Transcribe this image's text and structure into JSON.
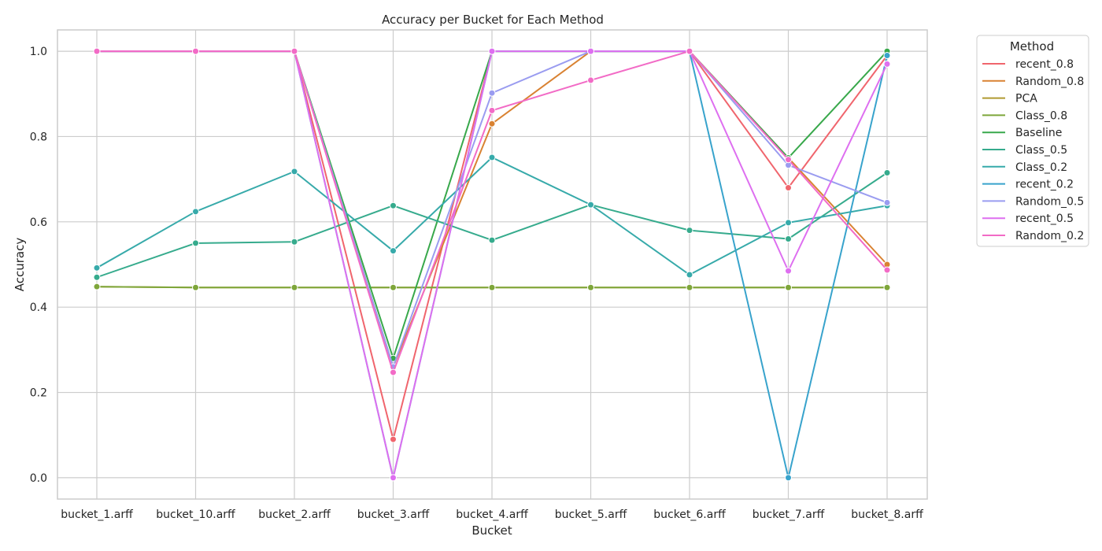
{
  "chart_data": {
    "type": "line",
    "title": "Accuracy per Bucket for Each Method",
    "xlabel": "Bucket",
    "ylabel": "Accuracy",
    "categories": [
      "bucket_1.arff",
      "bucket_10.arff",
      "bucket_2.arff",
      "bucket_3.arff",
      "bucket_4.arff",
      "bucket_5.arff",
      "bucket_6.arff",
      "bucket_7.arff",
      "bucket_8.arff"
    ],
    "ylim": [
      -0.05,
      1.05
    ],
    "yticks": [
      "0.0",
      "0.2",
      "0.4",
      "0.6",
      "0.8",
      "1.0"
    ],
    "grid": true,
    "legend_title": "Method",
    "legend_position": "outside-right",
    "series": [
      {
        "name": "recent_0.8",
        "color": "#f0656d",
        "values": [
          1.0,
          1.0,
          1.0,
          0.09,
          1.0,
          1.0,
          1.0,
          0.68,
          0.99
        ]
      },
      {
        "name": "Random_0.8",
        "color": "#d98232",
        "values": [
          1.0,
          1.0,
          1.0,
          0.26,
          0.83,
          1.0,
          1.0,
          0.75,
          0.5
        ]
      },
      {
        "name": "PCA",
        "color": "#b09a30",
        "values": [
          0.448,
          0.446,
          0.446,
          0.446,
          0.446,
          0.446,
          0.446,
          0.446,
          0.446
        ]
      },
      {
        "name": "Class_0.8",
        "color": "#7ea63a",
        "values": [
          0.448,
          0.446,
          0.446,
          0.446,
          0.446,
          0.446,
          0.446,
          0.446,
          0.446
        ]
      },
      {
        "name": "Baseline",
        "color": "#38a84b",
        "values": [
          1.0,
          1.0,
          1.0,
          0.28,
          1.0,
          1.0,
          1.0,
          0.75,
          1.0
        ]
      },
      {
        "name": "Class_0.5",
        "color": "#36ab8d",
        "values": [
          0.47,
          0.55,
          0.553,
          0.638,
          0.557,
          0.64,
          0.58,
          0.56,
          0.715
        ]
      },
      {
        "name": "Class_0.2",
        "color": "#37aaaa",
        "values": [
          0.492,
          0.624,
          0.718,
          0.532,
          0.751,
          0.64,
          0.476,
          0.598,
          0.638
        ]
      },
      {
        "name": "recent_0.2",
        "color": "#38a3cc",
        "values": [
          1.0,
          1.0,
          1.0,
          0.0,
          1.0,
          1.0,
          1.0,
          0.0,
          0.99
        ]
      },
      {
        "name": "Random_0.5",
        "color": "#9a9cf0",
        "values": [
          1.0,
          1.0,
          1.0,
          0.26,
          0.902,
          1.0,
          1.0,
          0.733,
          0.645
        ]
      },
      {
        "name": "recent_0.5",
        "color": "#de6ff0",
        "values": [
          1.0,
          1.0,
          1.0,
          0.0,
          1.0,
          1.0,
          1.0,
          0.485,
          0.97
        ]
      },
      {
        "name": "Random_0.2",
        "color": "#f26bc6",
        "values": [
          1.0,
          1.0,
          1.0,
          0.247,
          0.861,
          0.932,
          1.0,
          0.746,
          0.487
        ]
      }
    ]
  }
}
